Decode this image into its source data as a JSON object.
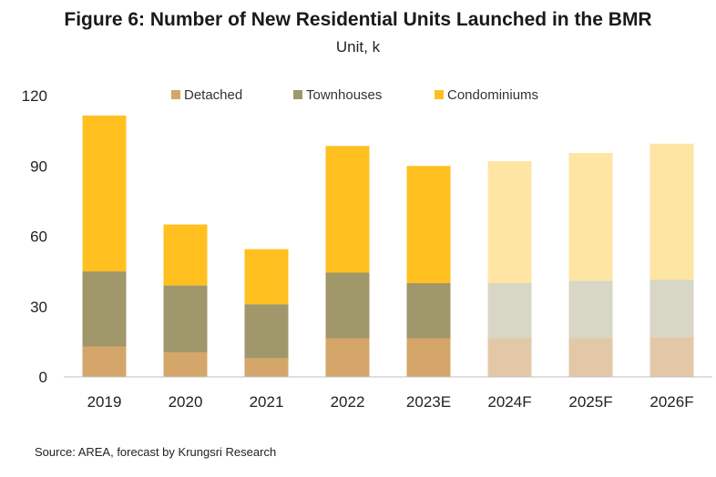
{
  "chart_data": {
    "type": "bar",
    "stacked": true,
    "title": "Figure 6: Number of New Residential Units Launched in the BMR",
    "subtitle": "Unit, k",
    "categories": [
      "2019",
      "2020",
      "2021",
      "2022",
      "2023E",
      "2024F",
      "2025F",
      "2026F"
    ],
    "forecast_categories": [
      "2024F",
      "2025F",
      "2026F"
    ],
    "series": [
      {
        "name": "Detached",
        "color": "#d4a66a",
        "forecast_color": "#e3c8a8",
        "values": [
          13,
          10.5,
          8,
          16.5,
          16.5,
          16.5,
          16.5,
          17
        ]
      },
      {
        "name": "Townhouses",
        "color": "#a0976a",
        "forecast_color": "#d8d6c4",
        "values": [
          32,
          28.5,
          23,
          28,
          23.5,
          23.5,
          24.5,
          24.5
        ]
      },
      {
        "name": "Condominiums",
        "color": "#ffc020",
        "forecast_color": "#ffe5a4",
        "values": [
          66.5,
          26,
          23.5,
          54,
          50,
          52,
          54.5,
          58
        ]
      }
    ],
    "yticks": [
      0,
      30,
      60,
      90,
      120
    ],
    "ylim": [
      0,
      120
    ],
    "grid": false,
    "legend_position": "top"
  },
  "source": "Source: AREA, forecast by Krungsri Research"
}
